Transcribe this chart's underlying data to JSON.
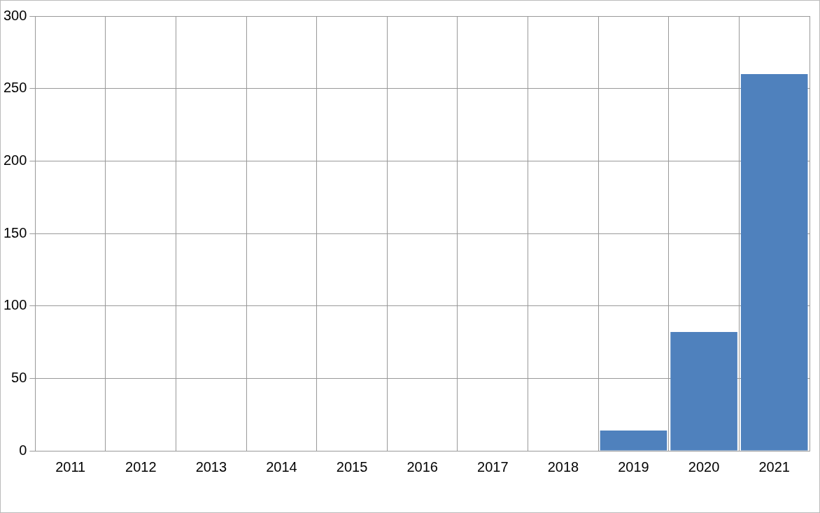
{
  "chart_data": {
    "type": "bar",
    "categories": [
      "2011",
      "2012",
      "2013",
      "2014",
      "2015",
      "2016",
      "2017",
      "2018",
      "2019",
      "2020",
      "2021"
    ],
    "values": [
      null,
      null,
      null,
      null,
      null,
      null,
      null,
      null,
      14,
      82,
      260
    ],
    "color": "#4f81bd",
    "ylim": [
      0,
      300
    ],
    "yticks": [
      0,
      50,
      100,
      150,
      200,
      250,
      300
    ],
    "grid": true
  }
}
